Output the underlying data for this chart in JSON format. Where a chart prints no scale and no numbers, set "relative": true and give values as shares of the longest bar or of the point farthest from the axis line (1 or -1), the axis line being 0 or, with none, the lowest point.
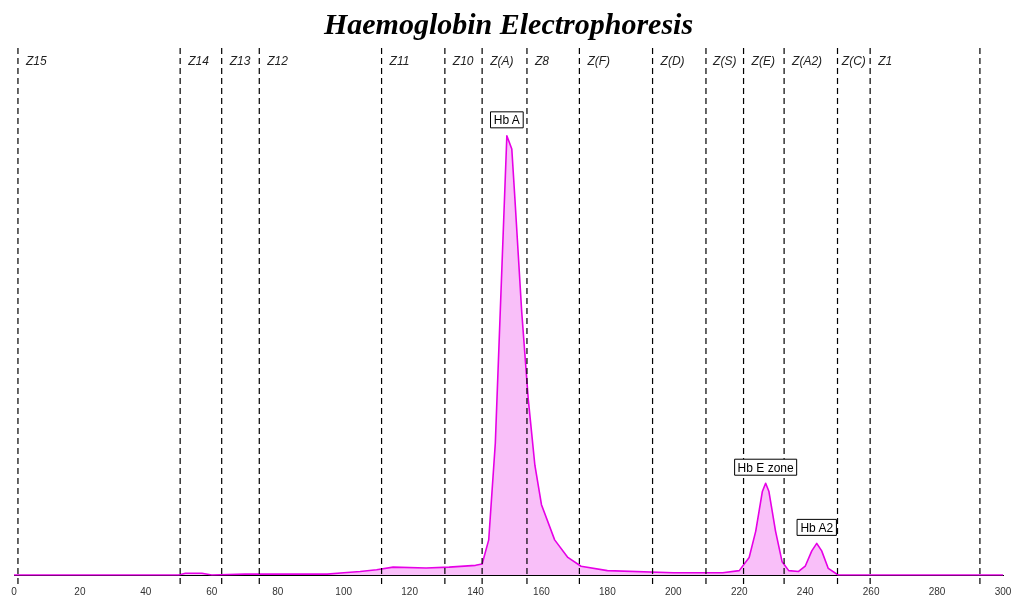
{
  "chart_data": {
    "type": "area",
    "title": "Haemoglobin Electrophoresis",
    "relative": true,
    "x": [
      0,
      50,
      52,
      55,
      57,
      60,
      70,
      95,
      100,
      105,
      110,
      115,
      125,
      132,
      140,
      142,
      144,
      146,
      148,
      149.5,
      151,
      152,
      154,
      156,
      158,
      160,
      164,
      168,
      172,
      180,
      200,
      215,
      220,
      223,
      225,
      227,
      228,
      229,
      231,
      233,
      235,
      238,
      240,
      242,
      243.5,
      245,
      247,
      250,
      300
    ],
    "series": [
      {
        "color": "#e600e6",
        "values": [
          0,
          0,
          0.004,
          0.004,
          0.004,
          0,
          0.002,
          0.002,
          0.005,
          0.008,
          0.012,
          0.018,
          0.016,
          0.018,
          0.022,
          0.025,
          0.08,
          0.3,
          0.7,
          1,
          0.97,
          0.85,
          0.6,
          0.4,
          0.25,
          0.16,
          0.08,
          0.04,
          0.02,
          0.01,
          0.005,
          0.005,
          0.01,
          0.04,
          0.1,
          0.19,
          0.209,
          0.19,
          0.1,
          0.03,
          0.01,
          0.008,
          0.02,
          0.055,
          0.072,
          0.055,
          0.015,
          0,
          0
        ]
      }
    ],
    "xlim": [
      0,
      300
    ],
    "xticks": [
      0,
      20,
      40,
      60,
      80,
      100,
      120,
      140,
      160,
      180,
      200,
      220,
      240,
      260,
      280,
      300
    ],
    "ref_lines": [
      {
        "axis": "x",
        "value": 1.2,
        "label": "Z15",
        "line_style": "dashed"
      },
      {
        "axis": "x",
        "value": 50.4,
        "label": "Z14",
        "line_style": "dashed"
      },
      {
        "axis": "x",
        "value": 63,
        "label": "Z13",
        "line_style": "dashed"
      },
      {
        "axis": "x",
        "value": 74.4,
        "label": "Z12",
        "line_style": "dashed"
      },
      {
        "axis": "x",
        "value": 111.5,
        "label": "Z11",
        "line_style": "dashed"
      },
      {
        "axis": "x",
        "value": 130.7,
        "label": "Z10",
        "line_style": "dashed"
      },
      {
        "axis": "x",
        "value": 142,
        "label": "Z(A)",
        "line_style": "dashed"
      },
      {
        "axis": "x",
        "value": 155.6,
        "label": "Z8",
        "line_style": "dashed"
      },
      {
        "axis": "x",
        "value": 171.5,
        "label": "Z(F)",
        "line_style": "dashed"
      },
      {
        "axis": "x",
        "value": 193.7,
        "label": "Z(D)",
        "line_style": "dashed"
      },
      {
        "axis": "x",
        "value": 209.9,
        "label": "Z(S)",
        "line_style": "dashed"
      },
      {
        "axis": "x",
        "value": 221.3,
        "label": "Z(E)",
        "line_style": "dashed"
      },
      {
        "axis": "x",
        "value": 233.6,
        "label": "Z(A2)",
        "line_style": "dashed"
      },
      {
        "axis": "x",
        "value": 249.8,
        "label": "Z(C)",
        "line_style": "dashed"
      },
      {
        "axis": "x",
        "value": 259.7,
        "label": "Z1",
        "line_style": "dashed"
      },
      {
        "axis": "x",
        "value": 293,
        "line_style": "dashed"
      }
    ],
    "annotations": [
      {
        "text": "Hb A",
        "x": 149.5,
        "y": 1
      },
      {
        "text": "Hb E zone",
        "x": 228,
        "y": 0.209
      },
      {
        "text": "Hb A2",
        "x": 243.5,
        "y": 0.072
      }
    ],
    "grid": false,
    "legend": false,
    "marker": "none",
    "line_style": "solid"
  }
}
